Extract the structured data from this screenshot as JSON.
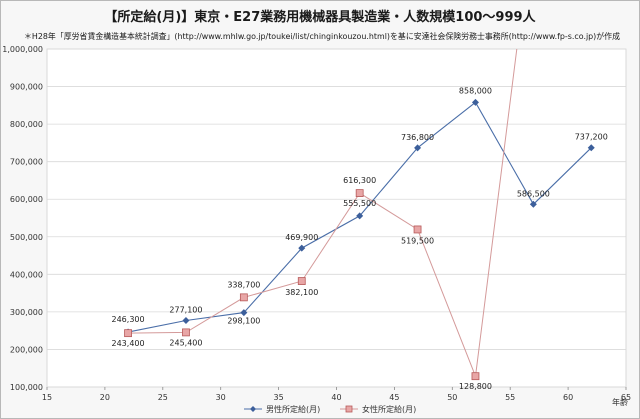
{
  "chart_data": {
    "type": "line",
    "title": "【所定給(月)】東京・E27業務用機械器具製造業・人数規模100～999人",
    "subtitle": "＊H28年「厚労省賃金構造基本統計調査」(http://www.mhlw.go.jp/toukei/list/chinginkouzou.html)を基に安達社会保険労務士事務所(http://www.fp-s.co.jp)が作成",
    "xlabel": "年齢",
    "ylabel": "",
    "xlim": [
      15,
      65
    ],
    "ylim": [
      100000,
      1000000
    ],
    "x_ticks": [
      15,
      20,
      25,
      30,
      35,
      40,
      45,
      50,
      55,
      60,
      65
    ],
    "y_ticks": [
      100000,
      200000,
      300000,
      400000,
      500000,
      600000,
      700000,
      800000,
      900000,
      1000000
    ],
    "y_tick_labels": [
      "100,000",
      "200,000",
      "300,000",
      "400,000",
      "500,000",
      "600,000",
      "700,000",
      "800,000",
      "900,000",
      "1,000,000"
    ],
    "x_tick_labels": [
      "15",
      "20",
      "25",
      "30",
      "35",
      "40",
      "45",
      "50",
      "55",
      "60",
      "65"
    ],
    "grid": "horizontal",
    "legend": "bottom",
    "series": [
      {
        "name": "男性所定給(月)",
        "color": "#4a6ea8",
        "marker": "diamond",
        "x": [
          22,
          27,
          32,
          37,
          42,
          47,
          52,
          57,
          62
        ],
        "y": [
          246300,
          277100,
          298100,
          469900,
          555500,
          736800,
          858000,
          586500,
          737200
        ],
        "labels": [
          "246,300",
          "277,100",
          "298,100",
          "469,900",
          "555,500",
          "736,800",
          "858,000",
          "586,500",
          "737,200"
        ]
      },
      {
        "name": "女性所定給(月)",
        "color": "#d49a9a",
        "marker": "square",
        "x": [
          22,
          27,
          32,
          37,
          42,
          47,
          52,
          57
        ],
        "y": [
          243400,
          245400,
          338700,
          382100,
          616300,
          519500,
          128800,
          1350000
        ],
        "labels": [
          "243,400",
          "245,400",
          "338,700",
          "382,100",
          "616,300",
          "519,500",
          "128,800",
          ""
        ]
      }
    ]
  }
}
